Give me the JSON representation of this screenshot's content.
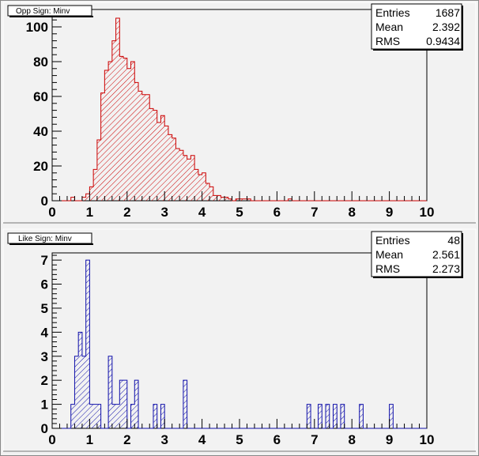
{
  "chart_data": [
    {
      "type": "bar",
      "title": "Opp Sign: Minv",
      "stats": {
        "labels": [
          "Entries",
          "Mean",
          "RMS"
        ],
        "values": [
          "1687",
          "2.392",
          "0.9434"
        ]
      },
      "xlim": [
        0,
        10
      ],
      "ylim": [
        0,
        110
      ],
      "xticks": [
        "0",
        "1",
        "2",
        "3",
        "4",
        "5",
        "6",
        "7",
        "8",
        "9",
        "10"
      ],
      "yticks": [
        0,
        20,
        40,
        60,
        80,
        100
      ],
      "ytick_labels": [
        "0",
        "20",
        "40",
        "60",
        "80",
        "100"
      ],
      "bin_width": 0.1,
      "color": "#cc0000",
      "fill_pattern": "diagonal-hatch",
      "values": [
        0,
        0,
        0,
        0,
        0,
        2,
        0,
        0,
        2,
        4,
        8,
        18,
        35,
        62,
        75,
        80,
        92,
        105,
        83,
        82,
        76,
        80,
        68,
        63,
        61,
        61,
        53,
        52,
        45,
        49,
        43,
        38,
        36,
        30,
        29,
        26,
        24,
        26,
        18,
        15,
        16,
        10,
        8,
        3,
        3,
        2,
        2,
        1,
        0,
        1,
        1,
        1,
        1,
        0,
        0,
        0,
        0,
        0,
        0,
        0,
        0,
        0,
        0,
        1,
        0,
        0,
        0,
        0,
        0,
        0,
        0,
        0,
        0,
        0,
        0,
        0,
        0,
        0,
        0,
        0,
        0,
        0,
        0,
        0,
        0,
        0,
        0,
        0,
        0,
        0,
        0,
        0,
        0,
        0,
        0,
        0,
        0,
        0,
        0,
        0
      ]
    },
    {
      "type": "bar",
      "title": "Like Sign: Minv",
      "stats": {
        "labels": [
          "Entries",
          "Mean",
          "RMS"
        ],
        "values": [
          "48",
          "2.561",
          "2.273"
        ]
      },
      "xlim": [
        0,
        10
      ],
      "ylim": [
        0,
        7.3
      ],
      "xticks": [
        "0",
        "1",
        "2",
        "3",
        "4",
        "5",
        "6",
        "7",
        "8",
        "9",
        "10"
      ],
      "yticks": [
        0,
        1,
        2,
        3,
        4,
        5,
        6,
        7
      ],
      "ytick_labels": [
        "0",
        "1",
        "2",
        "3",
        "4",
        "5",
        "6",
        "7"
      ],
      "bin_width": 0.1,
      "color": "#1010aa",
      "fill_pattern": "diagonal-hatch",
      "values": [
        0,
        0,
        0,
        0,
        0,
        1,
        3,
        4,
        3,
        7,
        1,
        1,
        1,
        0,
        0,
        3,
        1,
        1,
        2,
        2,
        0,
        1,
        2,
        0,
        0,
        0,
        0,
        1,
        0,
        1,
        0,
        0,
        0,
        0,
        0,
        2,
        0,
        0,
        0,
        0,
        0,
        0,
        0,
        0,
        0,
        0,
        0,
        0,
        0,
        0,
        0,
        0,
        0,
        0,
        0,
        0,
        0,
        0,
        0,
        0,
        0,
        0,
        0,
        0,
        0,
        0,
        0,
        0,
        1,
        0,
        0,
        1,
        0,
        1,
        0,
        1,
        0,
        1,
        0,
        0,
        0,
        0,
        1,
        0,
        0,
        0,
        0,
        0,
        0,
        0,
        1,
        0,
        0,
        0,
        0,
        0,
        0,
        0,
        0,
        0
      ]
    }
  ]
}
